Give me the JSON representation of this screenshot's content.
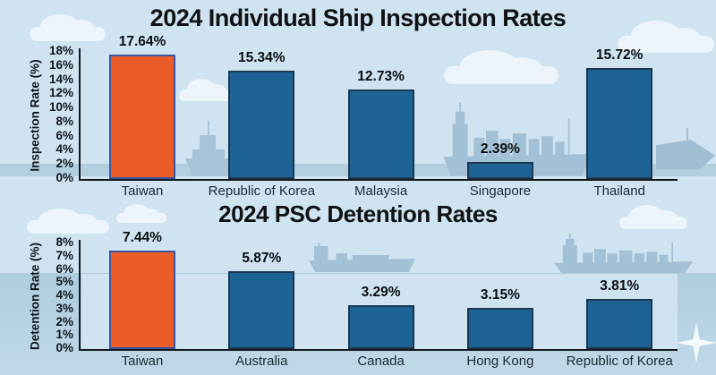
{
  "chart_data": [
    {
      "type": "bar",
      "title": "2024 Individual Ship Inspection Rates",
      "ylabel": "Inspection Rate (%)",
      "categories": [
        "Taiwan",
        "Republic of Korea",
        "Malaysia",
        "Singapore",
        "Thailand"
      ],
      "values": [
        17.64,
        15.34,
        12.73,
        2.39,
        15.72
      ],
      "value_labels": [
        "17.64%",
        "15.34%",
        "12.73%",
        "2.39%",
        "15.72%"
      ],
      "ylim": [
        0,
        18
      ],
      "ytick_step": 2,
      "tick_suffix": "%",
      "highlight_index": 0,
      "bar_color": "#1e6396",
      "bar_border": "#1b3850",
      "highlight_color": "#ea5c28",
      "highlight_border": "#3c55a0",
      "legend": "none",
      "grid": false
    },
    {
      "type": "bar",
      "title": "2024 PSC Detention Rates",
      "ylabel": "Detention Rate (%)",
      "categories": [
        "Taiwan",
        "Australia",
        "Canada",
        "Hong Kong",
        "Republic of Korea"
      ],
      "values": [
        7.44,
        5.87,
        3.29,
        3.15,
        3.81
      ],
      "value_labels": [
        "7.44%",
        "5.87%",
        "3.29%",
        "3.15%",
        "3.81%"
      ],
      "ylim": [
        0,
        8
      ],
      "ytick_step": 1,
      "tick_suffix": "%",
      "highlight_index": 0,
      "bar_color": "#1e6396",
      "bar_border": "#1b3850",
      "highlight_color": "#ea5c28",
      "highlight_border": "#3c55a0",
      "legend": "none",
      "grid": false
    }
  ],
  "colors": {
    "sky": "#cfe3f0",
    "water": "#b2cfe0",
    "cloud": "#edf4fa",
    "ship_silhouette": "#a3c1d6",
    "axis": "#14181c",
    "text": "#0f1113"
  },
  "decor_icons": [
    "cloud-icon",
    "cargo-ship-icon",
    "tug-boat-icon",
    "bow-ship-icon",
    "tanker-ship-icon",
    "sparkle-icon"
  ]
}
